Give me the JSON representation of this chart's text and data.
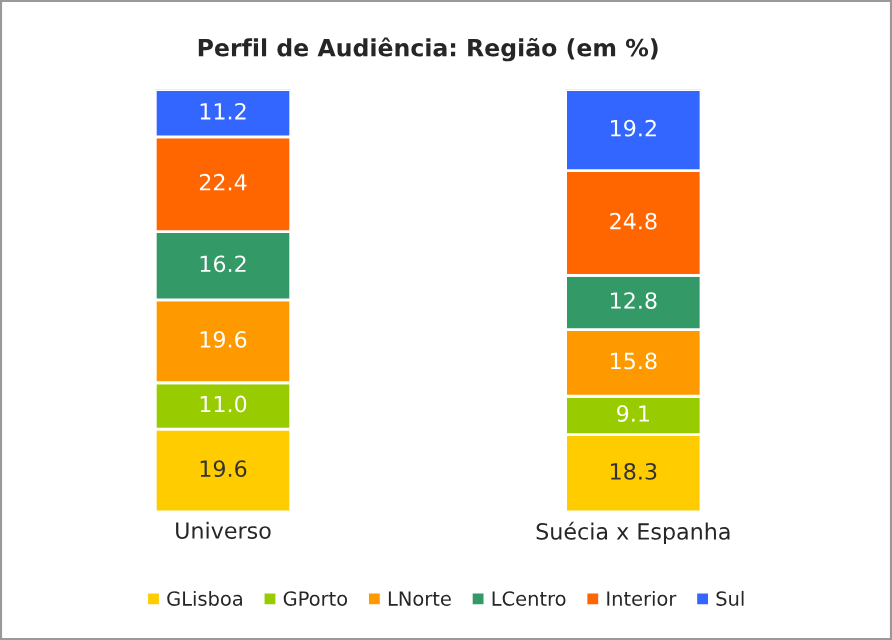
{
  "chart_data": {
    "type": "bar",
    "title": "Perfil de Audiência: Região (em %)",
    "stacked": true,
    "legend": "bottom",
    "grid": false,
    "tick_labels": "x",
    "categories": [
      "Universo",
      "Suécia x Espanha"
    ],
    "series": [
      {
        "name": "GLisboa",
        "color": "#ffcc00",
        "values": [
          19.6,
          18.3
        ],
        "value_labels": [
          "19.6",
          "18.3"
        ]
      },
      {
        "name": "GPorto",
        "color": "#99cc00",
        "values": [
          11.0,
          9.1
        ],
        "value_labels": [
          "11.0",
          "9.1"
        ]
      },
      {
        "name": "LNorte",
        "color": "#ff9900",
        "values": [
          19.6,
          15.8
        ],
        "value_labels": [
          "19.6",
          "15.8"
        ]
      },
      {
        "name": "LCentro",
        "color": "#339966",
        "values": [
          16.2,
          12.8
        ],
        "value_labels": [
          "16.2",
          "12.8"
        ]
      },
      {
        "name": "Interior",
        "color": "#ff6600",
        "values": [
          22.4,
          24.8
        ],
        "value_labels": [
          "22.4",
          "24.8"
        ]
      },
      {
        "name": "Sul",
        "color": "#3366ff",
        "values": [
          11.2,
          19.2
        ],
        "value_labels": [
          "11.2",
          "19.2"
        ]
      }
    ]
  }
}
